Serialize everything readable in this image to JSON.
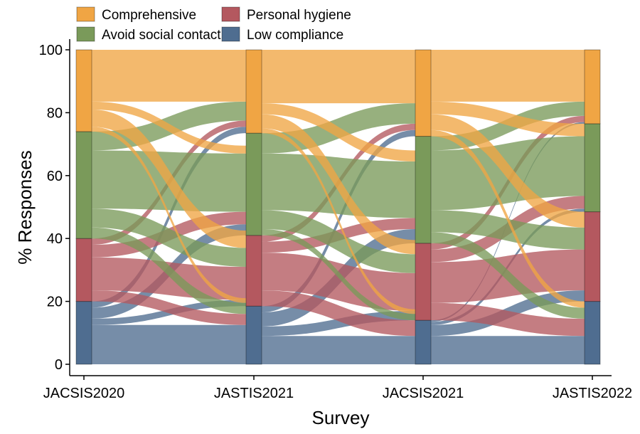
{
  "chart_data": {
    "type": "sankey",
    "xlabel": "Survey",
    "ylabel": "% Responses",
    "ylim": [
      0,
      100
    ],
    "yticks": [
      0,
      20,
      40,
      60,
      80,
      100
    ],
    "surveys": [
      "JACSIS2020",
      "JASTIS2021",
      "JACSIS2021",
      "JASTIS2022"
    ],
    "categories": [
      {
        "name": "Comprehensive",
        "color": "#f0a544"
      },
      {
        "name": "Personal hygiene",
        "color": "#b4585f"
      },
      {
        "name": "Avoid social contact",
        "color": "#7a9a5a"
      },
      {
        "name": "Low compliance",
        "color": "#4f6d90"
      }
    ],
    "stack_order_bottom_to_top": [
      "Low compliance",
      "Personal hygiene",
      "Avoid social contact",
      "Comprehensive"
    ],
    "transitions": [
      {
        "from": "JACSIS2020",
        "to": "JASTIS2021",
        "flows": {
          "Comprehensive": {
            "Comprehensive": 16.5,
            "Personal hygiene": 5.5,
            "Avoid social contact": 2.5,
            "Low compliance": 1.5
          },
          "Personal hygiene": {
            "Comprehensive": 2.0,
            "Personal hygiene": 10.5,
            "Avoid social contact": 4.0,
            "Low compliance": 3.5
          },
          "Avoid social contact": {
            "Comprehensive": 6.0,
            "Personal hygiene": 6.0,
            "Avoid social contact": 18.5,
            "Low compliance": 3.5
          },
          "Low compliance": {
            "Comprehensive": 2.0,
            "Personal hygiene": 2.0,
            "Avoid social contact": 3.5,
            "Low compliance": 12.5
          }
        }
      },
      {
        "from": "JASTIS2021",
        "to": "JACSIS2021",
        "flows": {
          "Comprehensive": {
            "Comprehensive": 17.0,
            "Personal hygiene": 4.5,
            "Avoid social contact": 3.5,
            "Low compliance": 1.5
          },
          "Personal hygiene": {
            "Comprehensive": 2.0,
            "Personal hygiene": 12.0,
            "Avoid social contact": 3.5,
            "Low compliance": 5.0
          },
          "Avoid social contact": {
            "Comprehensive": 6.5,
            "Personal hygiene": 6.0,
            "Avoid social contact": 18.0,
            "Low compliance": 2.0
          },
          "Low compliance": {
            "Comprehensive": 2.0,
            "Personal hygiene": 3.0,
            "Avoid social contact": 4.5,
            "Low compliance": 9.0
          }
        }
      },
      {
        "from": "JACSIS2021",
        "to": "JASTIS2022",
        "flows": {
          "Comprehensive": {
            "Comprehensive": 16.5,
            "Personal hygiene": 5.0,
            "Avoid social contact": 4.0,
            "Low compliance": 2.0
          },
          "Personal hygiene": {
            "Comprehensive": 2.0,
            "Personal hygiene": 13.0,
            "Avoid social contact": 4.0,
            "Low compliance": 5.5
          },
          "Avoid social contact": {
            "Comprehensive": 4.5,
            "Personal hygiene": 7.0,
            "Avoid social contact": 19.0,
            "Low compliance": 3.5
          },
          "Low compliance": {
            "Comprehensive": 0.5,
            "Personal hygiene": 3.5,
            "Avoid social contact": 1.0,
            "Low compliance": 9.0
          }
        }
      }
    ],
    "legend": {
      "placement": "top-left",
      "columns": 2
    }
  }
}
